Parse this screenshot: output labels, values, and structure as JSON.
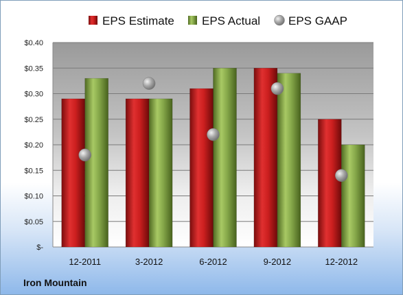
{
  "company": "Iron Mountain",
  "chart_data": {
    "type": "bar",
    "categories": [
      "12-2011",
      "3-2012",
      "6-2012",
      "9-2012",
      "12-2012"
    ],
    "series": [
      {
        "name": "EPS Estimate",
        "type": "bar",
        "color": "#cc1f1f",
        "values": [
          0.29,
          0.29,
          0.31,
          0.35,
          0.25
        ]
      },
      {
        "name": "EPS Actual",
        "type": "bar",
        "color": "#86a84a",
        "values": [
          0.33,
          0.29,
          0.35,
          0.34,
          0.2
        ]
      },
      {
        "name": "EPS GAAP",
        "type": "scatter",
        "color": "#a6a6a6",
        "values": [
          0.18,
          0.32,
          0.22,
          0.31,
          0.14
        ]
      }
    ],
    "ylim": [
      0,
      0.4
    ],
    "yticks": [
      0,
      0.05,
      0.1,
      0.15,
      0.2,
      0.25,
      0.3,
      0.35,
      0.4
    ],
    "ytick_labels": [
      "$-",
      "$0.05",
      "$0.10",
      "$0.15",
      "$0.20",
      "$0.25",
      "$0.30",
      "$0.35",
      "$0.40"
    ],
    "grid": true,
    "legend_position": "top"
  }
}
